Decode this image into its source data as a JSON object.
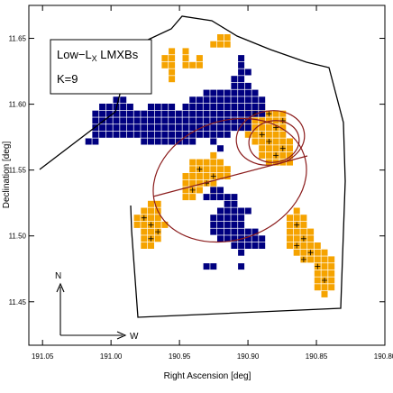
{
  "chart_data": {
    "type": "heatmap",
    "title": "",
    "legend": {
      "line1": "Low−L",
      "sub": "X",
      "line1_rest": " LMXBs",
      "line2": "K=9",
      "position": "top-left"
    },
    "xlabel": "Right Ascension [deg]",
    "ylabel": "Declination [deg]",
    "x_ticks": [
      "191.05",
      "191.00",
      "190.95",
      "190.90",
      "190.85",
      "190.80"
    ],
    "y_ticks": [
      "11.45",
      "11.50",
      "11.55",
      "11.60",
      "11.65"
    ],
    "x_tick_values": [
      191.05,
      191.0,
      190.95,
      190.9,
      190.85,
      190.8
    ],
    "y_tick_values": [
      11.45,
      11.5,
      11.55,
      11.6,
      11.65
    ],
    "xlim": [
      191.06,
      190.8
    ],
    "ylim": [
      11.417,
      11.675
    ],
    "x_reversed": true,
    "compass": {
      "north": "N",
      "west": "W"
    },
    "colors": {
      "excess": "#f5a300",
      "deficit": "#000080",
      "ellipse": "#8b1c1c",
      "outline": "#000000",
      "frame": "#000000"
    },
    "grid": false
  }
}
